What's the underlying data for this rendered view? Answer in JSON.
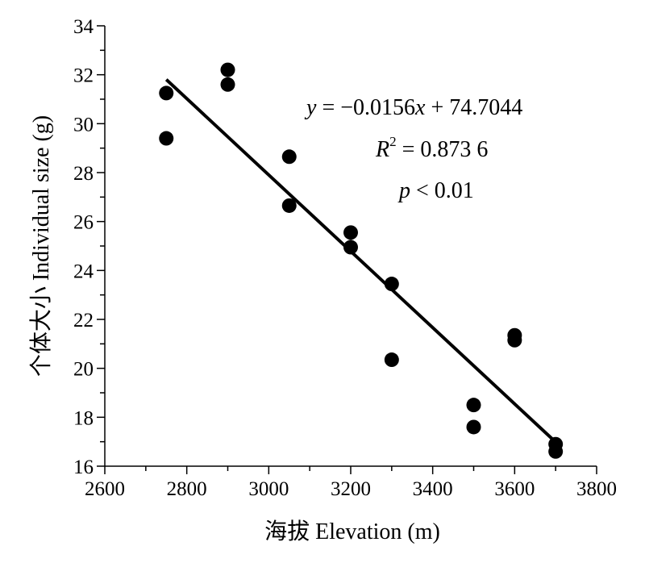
{
  "chart_data": {
    "type": "scatter",
    "xlabel": "海拔 Elevation (m)",
    "ylabel": "个体大小 Individual size (g)",
    "xlim": [
      2600,
      3800
    ],
    "ylim": [
      16,
      34
    ],
    "x_ticks": [
      "2600",
      "2800",
      "3000",
      "3200",
      "3400",
      "3600",
      "3800"
    ],
    "y_ticks": [
      "16",
      "18",
      "20",
      "22",
      "24",
      "26",
      "28",
      "30",
      "32",
      "34"
    ],
    "grid": false,
    "points": [
      {
        "x": 2750,
        "y": 31.25
      },
      {
        "x": 2750,
        "y": 29.4
      },
      {
        "x": 2900,
        "y": 32.2
      },
      {
        "x": 2900,
        "y": 31.6
      },
      {
        "x": 3050,
        "y": 28.65
      },
      {
        "x": 3050,
        "y": 26.65
      },
      {
        "x": 3200,
        "y": 25.55
      },
      {
        "x": 3200,
        "y": 24.95
      },
      {
        "x": 3300,
        "y": 23.45
      },
      {
        "x": 3300,
        "y": 20.35
      },
      {
        "x": 3500,
        "y": 18.5
      },
      {
        "x": 3500,
        "y": 17.6
      },
      {
        "x": 3600,
        "y": 21.35
      },
      {
        "x": 3600,
        "y": 21.15
      },
      {
        "x": 3700,
        "y": 16.9
      },
      {
        "x": 3700,
        "y": 16.6
      }
    ],
    "fit_line": {
      "slope": -0.0156,
      "intercept": 74.7044,
      "x_range": [
        2750,
        3700
      ]
    },
    "annotations": {
      "equation": {
        "y_var": "y",
        "eq": " = −0.0156",
        "x_var": "x",
        "rest": " + 74.7044"
      },
      "r2": {
        "r": "R",
        "sup": "2",
        "rest": " = 0.873 6"
      },
      "p": {
        "p_var": "p",
        "rest": " < 0.01"
      }
    }
  }
}
